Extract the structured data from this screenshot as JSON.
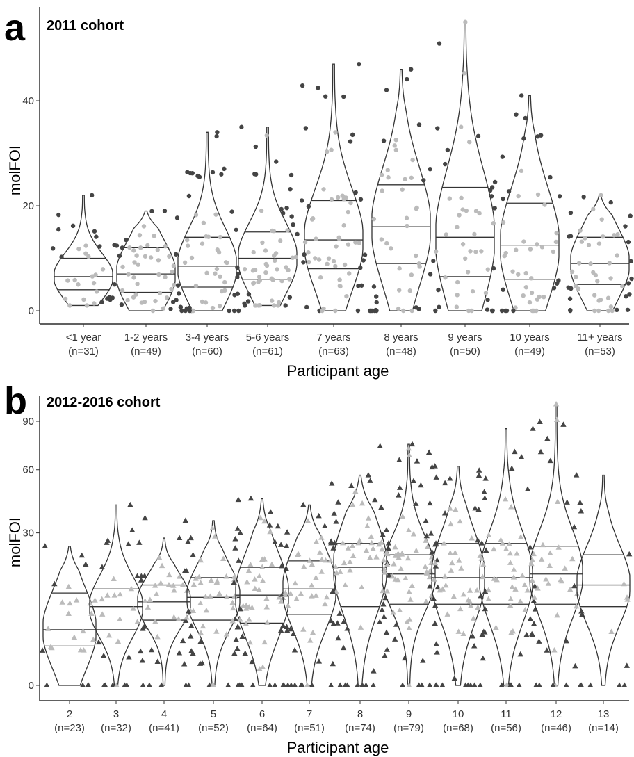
{
  "panels": [
    {
      "letter": "a",
      "title": "2011 cohort",
      "xlabel": "Participant age",
      "ylabel": "molFOI"
    },
    {
      "letter": "b",
      "title": "2012-2016 cohort",
      "xlabel": "Participant age",
      "ylabel": "molFOI"
    }
  ],
  "chart_data": [
    {
      "type": "violin",
      "title": "2011 cohort",
      "xlabel": "Participant age",
      "ylabel": "molFOI",
      "y_scale": "linear",
      "ylim": [
        -1,
        55
      ],
      "yticks": [
        0,
        20,
        40
      ],
      "marker": "circle",
      "colors": {
        "outline": "#333333",
        "inner_points": "#bbbbbb",
        "outer_points": "#444444"
      },
      "categories": [
        "<1 year",
        "1-2 years",
        "3-4 years",
        "5-6 years",
        "7 years",
        "8 years",
        "9 years",
        "10 years",
        "11+ years"
      ],
      "counts": [
        "(n=31)",
        "(n=49)",
        "(n=60)",
        "(n=61)",
        "(n=63)",
        "(n=48)",
        "(n=50)",
        "(n=49)",
        "(n=53)"
      ],
      "series": [
        {
          "category": "<1 year",
          "min": 1,
          "q1": 4,
          "median": 6.5,
          "q3": 10,
          "max": 22
        },
        {
          "category": "1-2 years",
          "min": 0,
          "q1": 3.5,
          "median": 7,
          "q3": 12,
          "max": 19
        },
        {
          "category": "3-4 years",
          "min": 0,
          "q1": 4.5,
          "median": 8.5,
          "q3": 14,
          "max": 34
        },
        {
          "category": "5-6 years",
          "min": 1,
          "q1": 6,
          "median": 10,
          "q3": 15,
          "max": 35
        },
        {
          "category": "7 years",
          "min": 0,
          "q1": 8,
          "median": 13.5,
          "q3": 21,
          "max": 47
        },
        {
          "category": "8 years",
          "min": 0,
          "q1": 9,
          "median": 16,
          "q3": 24,
          "max": 46
        },
        {
          "category": "9 years",
          "min": 0,
          "q1": 6.5,
          "median": 14,
          "q3": 23.5,
          "max": 55
        },
        {
          "category": "10 years",
          "min": 0,
          "q1": 6,
          "median": 12.5,
          "q3": 20.5,
          "max": 41
        },
        {
          "category": "11+ years",
          "min": 0,
          "q1": 5,
          "median": 9,
          "q3": 14,
          "max": 22
        }
      ]
    },
    {
      "type": "violin",
      "title": "2012-2016 cohort",
      "xlabel": "Participant age",
      "ylabel": "molFOI",
      "y_scale": "sqrt",
      "ylim": [
        0,
        100
      ],
      "yticks": [
        0,
        30,
        60,
        90
      ],
      "marker": "triangle",
      "colors": {
        "outline": "#333333",
        "inner_points": "#bbbbbb",
        "outer_points": "#444444"
      },
      "categories": [
        "2",
        "3",
        "4",
        "5",
        "6",
        "7",
        "8",
        "9",
        "10",
        "11",
        "12",
        "13"
      ],
      "counts": [
        "(n=23)",
        "(n=32)",
        "(n=41)",
        "(n=52)",
        "(n=64)",
        "(n=51)",
        "(n=74)",
        "(n=79)",
        "(n=68)",
        "(n=56)",
        "(n=46)",
        "(n=14)"
      ],
      "series": [
        {
          "category": "2",
          "min": 0,
          "q1": 2,
          "median": 4,
          "q3": 11,
          "max": 25
        },
        {
          "category": "3",
          "min": 0,
          "q1": 4,
          "median": 8,
          "q3": 12,
          "max": 42
        },
        {
          "category": "4",
          "min": 0,
          "q1": 5.5,
          "median": 9,
          "q3": 13,
          "max": 28
        },
        {
          "category": "5",
          "min": 0,
          "q1": 5.5,
          "median": 10,
          "q3": 15,
          "max": 35
        },
        {
          "category": "6",
          "min": 0,
          "q1": 5,
          "median": 10.5,
          "q3": 18,
          "max": 45
        },
        {
          "category": "7",
          "min": 0,
          "q1": 6.5,
          "median": 12,
          "q3": 20,
          "max": 42
        },
        {
          "category": "8",
          "min": 0,
          "q1": 8,
          "median": 18,
          "q3": 26,
          "max": 57
        },
        {
          "category": "9",
          "min": 0,
          "q1": 8.5,
          "median": 16,
          "q3": 22,
          "max": 75
        },
        {
          "category": "10",
          "min": 0,
          "q1": 8.5,
          "median": 15,
          "q3": 26,
          "max": 62
        },
        {
          "category": "11",
          "min": 0,
          "q1": 8.5,
          "median": 15,
          "q3": 26,
          "max": 85
        },
        {
          "category": "12",
          "min": 0,
          "q1": 8.5,
          "median": 16,
          "q3": 25,
          "max": 102
        },
        {
          "category": "13",
          "min": 0,
          "q1": 8,
          "median": 13,
          "q3": 22,
          "max": 57
        }
      ]
    }
  ]
}
